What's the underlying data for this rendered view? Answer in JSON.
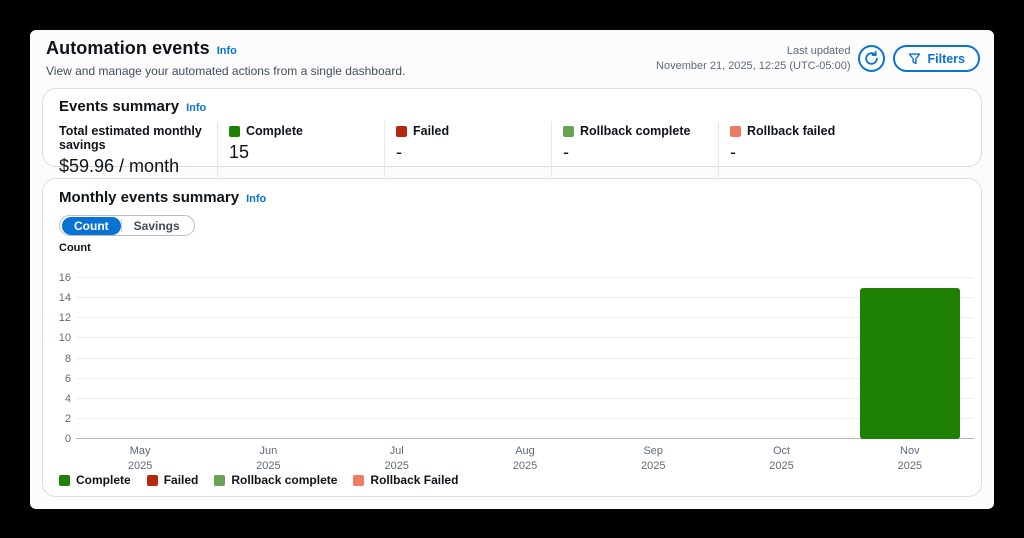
{
  "header": {
    "title": "Automation events",
    "info_label": "Info",
    "subtitle": "View and manage your automated actions from a single dashboard.",
    "last_updated_label": "Last updated",
    "last_updated_value": "November 21, 2025, 12:25 (UTC-05:00)",
    "refresh_icon": "refresh-circular-arrow",
    "filters_button": {
      "label": "Filters",
      "icon": "funnel"
    }
  },
  "colors": {
    "accent": "#0972d3",
    "complete": "#1f8104",
    "failed": "#b7270d",
    "rollback_complete": "#67a353",
    "rollback_failed": "#ef7b62"
  },
  "events_summary": {
    "title": "Events summary",
    "info_label": "Info",
    "metrics": [
      {
        "label": "Total estimated monthly savings",
        "value": "$59.96 / month"
      },
      {
        "label": "Complete",
        "value": "15",
        "color": "#1f8104"
      },
      {
        "label": "Failed",
        "value": "-",
        "color": "#b7270d"
      },
      {
        "label": "Rollback complete",
        "value": "-",
        "color": "#67a353"
      },
      {
        "label": "Rollback failed",
        "value": "-",
        "color": "#ef7b62"
      }
    ]
  },
  "monthly_summary": {
    "title": "Monthly events summary",
    "info_label": "Info",
    "toggle": {
      "options": [
        "Count",
        "Savings"
      ],
      "selected": "Count"
    }
  },
  "chart_data": {
    "type": "bar",
    "title": "Monthly events summary",
    "ylabel": "Count",
    "ylim": [
      0,
      16
    ],
    "ytick_step": 2,
    "grid": true,
    "legend_position": "bottom",
    "categories": [
      "May 2025",
      "Jun 2025",
      "Jul 2025",
      "Aug 2025",
      "Sep 2025",
      "Oct 2025",
      "Nov 2025"
    ],
    "series": [
      {
        "name": "Complete",
        "color": "#1f8104",
        "values": [
          0,
          0,
          0,
          0,
          0,
          0,
          15
        ]
      },
      {
        "name": "Failed",
        "color": "#b7270d",
        "values": [
          0,
          0,
          0,
          0,
          0,
          0,
          0
        ]
      },
      {
        "name": "Rollback complete",
        "color": "#67a353",
        "values": [
          0,
          0,
          0,
          0,
          0,
          0,
          0
        ]
      },
      {
        "name": "Rollback Failed",
        "color": "#ef7b62",
        "values": [
          0,
          0,
          0,
          0,
          0,
          0,
          0
        ]
      }
    ]
  }
}
